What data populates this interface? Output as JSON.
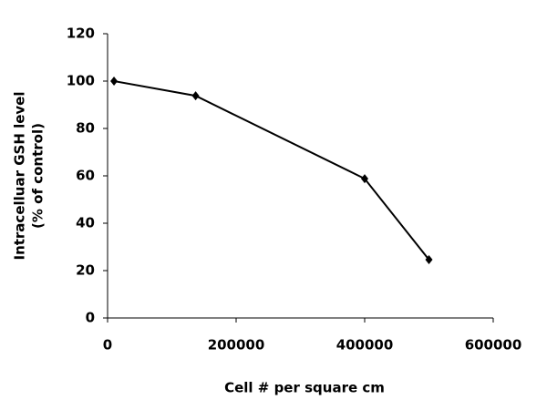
{
  "chart_data": {
    "type": "line",
    "x_label": "Cell # per square cm",
    "y_label": [
      "Intracelluar GSH level",
      "(% of control)"
    ],
    "x": [
      10000,
      137000,
      400000,
      500000
    ],
    "series": [
      {
        "values": [
          100,
          93.8,
          58.8,
          24.6
        ],
        "color": "#000000"
      }
    ],
    "xlim": [
      0,
      600000
    ],
    "xticks": [
      0,
      200000,
      400000,
      600000
    ],
    "ylim": [
      0,
      120
    ],
    "yticks": [
      0,
      20,
      40,
      60,
      80,
      100,
      120
    ],
    "grid": false
  }
}
